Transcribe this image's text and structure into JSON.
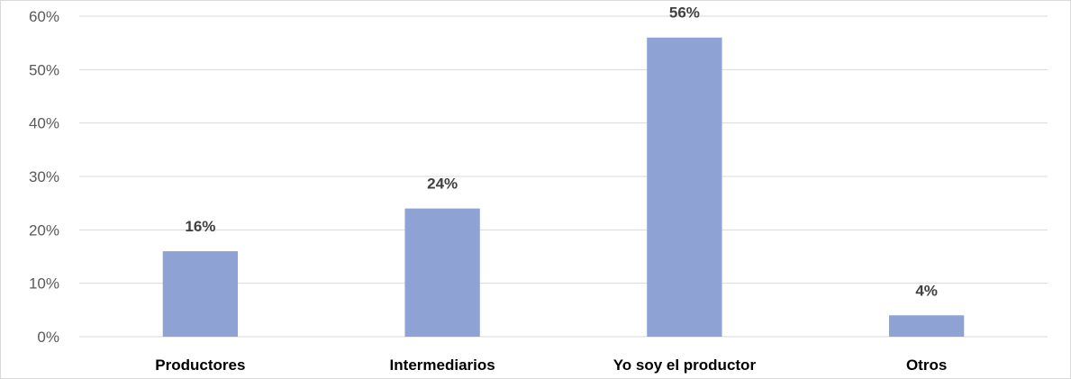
{
  "chart_data": {
    "type": "bar",
    "categories": [
      "Productores",
      "Intermediarios",
      "Yo soy el productor",
      "Otros"
    ],
    "values": [
      16,
      24,
      56,
      4
    ],
    "data_labels": [
      "16%",
      "24%",
      "56%",
      "4%"
    ],
    "ylim": [
      0,
      60
    ],
    "yticks": [
      "0%",
      "10%",
      "20%",
      "30%",
      "40%",
      "50%",
      "60%"
    ],
    "grid": true,
    "bar_color": "#8fa2d4",
    "gridline_color": "#d9d9d9"
  }
}
